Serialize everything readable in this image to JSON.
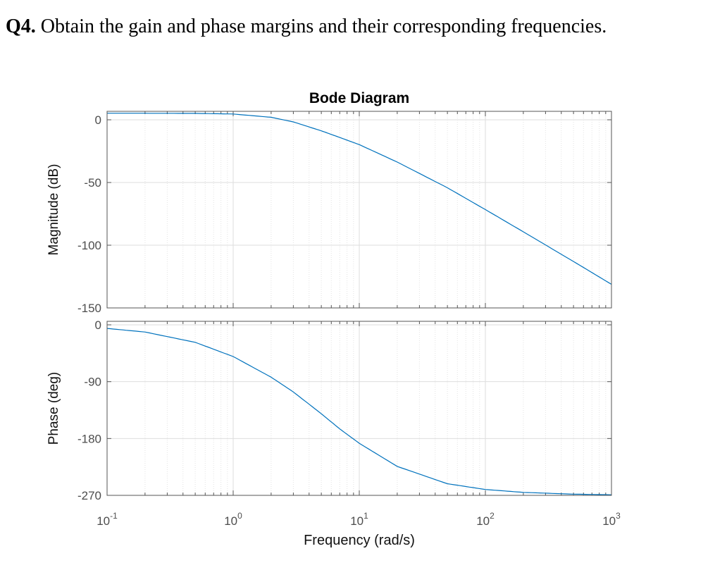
{
  "question": {
    "number": "Q4.",
    "text": "Obtain the gain and phase margins and their corresponding frequencies."
  },
  "chart_data": {
    "type": "line",
    "title": "Bode Diagram",
    "xlabel": "Frequency  (rad/s)",
    "x_scale": "log",
    "xlim": [
      0.1,
      1000
    ],
    "x_ticks": [
      {
        "base": "10",
        "exp": "-1"
      },
      {
        "base": "10",
        "exp": "0"
      },
      {
        "base": "10",
        "exp": "1"
      },
      {
        "base": "10",
        "exp": "2"
      },
      {
        "base": "10",
        "exp": "3"
      }
    ],
    "grid": true,
    "line_color": "#0072BD",
    "panels": [
      {
        "name": "magnitude",
        "ylabel": "Magnitude (dB)",
        "ylim": [
          -150,
          5
        ],
        "y_ticks": [
          "0",
          "-50",
          "-100",
          "-150"
        ],
        "series": [
          {
            "x": [
              0.1,
              0.2,
              0.5,
              1,
              2,
              3,
              5,
              7,
              10,
              20,
              50,
              100,
              200,
              500,
              1000
            ],
            "y": [
              5.2,
              5.2,
              5.1,
              4.6,
              2.0,
              -1.7,
              -8.8,
              -14.1,
              -19.8,
              -33.7,
              -54.2,
              -71.6,
              -89.3,
              -113.0,
              -131.2
            ]
          }
        ]
      },
      {
        "name": "phase",
        "ylabel": "Phase (deg)",
        "ylim": [
          -270,
          0
        ],
        "y_ticks": [
          "0",
          "-90",
          "-180",
          "-270"
        ],
        "series": [
          {
            "x": [
              0.1,
              0.2,
              0.5,
              1,
              2,
              3,
              5,
              7,
              10,
              20,
              50,
              100,
              200,
              500,
              1000
            ],
            "y": [
              -5.7,
              -11.4,
              -27.7,
              -50.2,
              -82.9,
              -106.3,
              -140.8,
              -164.8,
              -187.6,
              -224.2,
              -251.6,
              -260.7,
              -265.3,
              -268.1,
              -269.1
            ]
          }
        ]
      }
    ]
  }
}
